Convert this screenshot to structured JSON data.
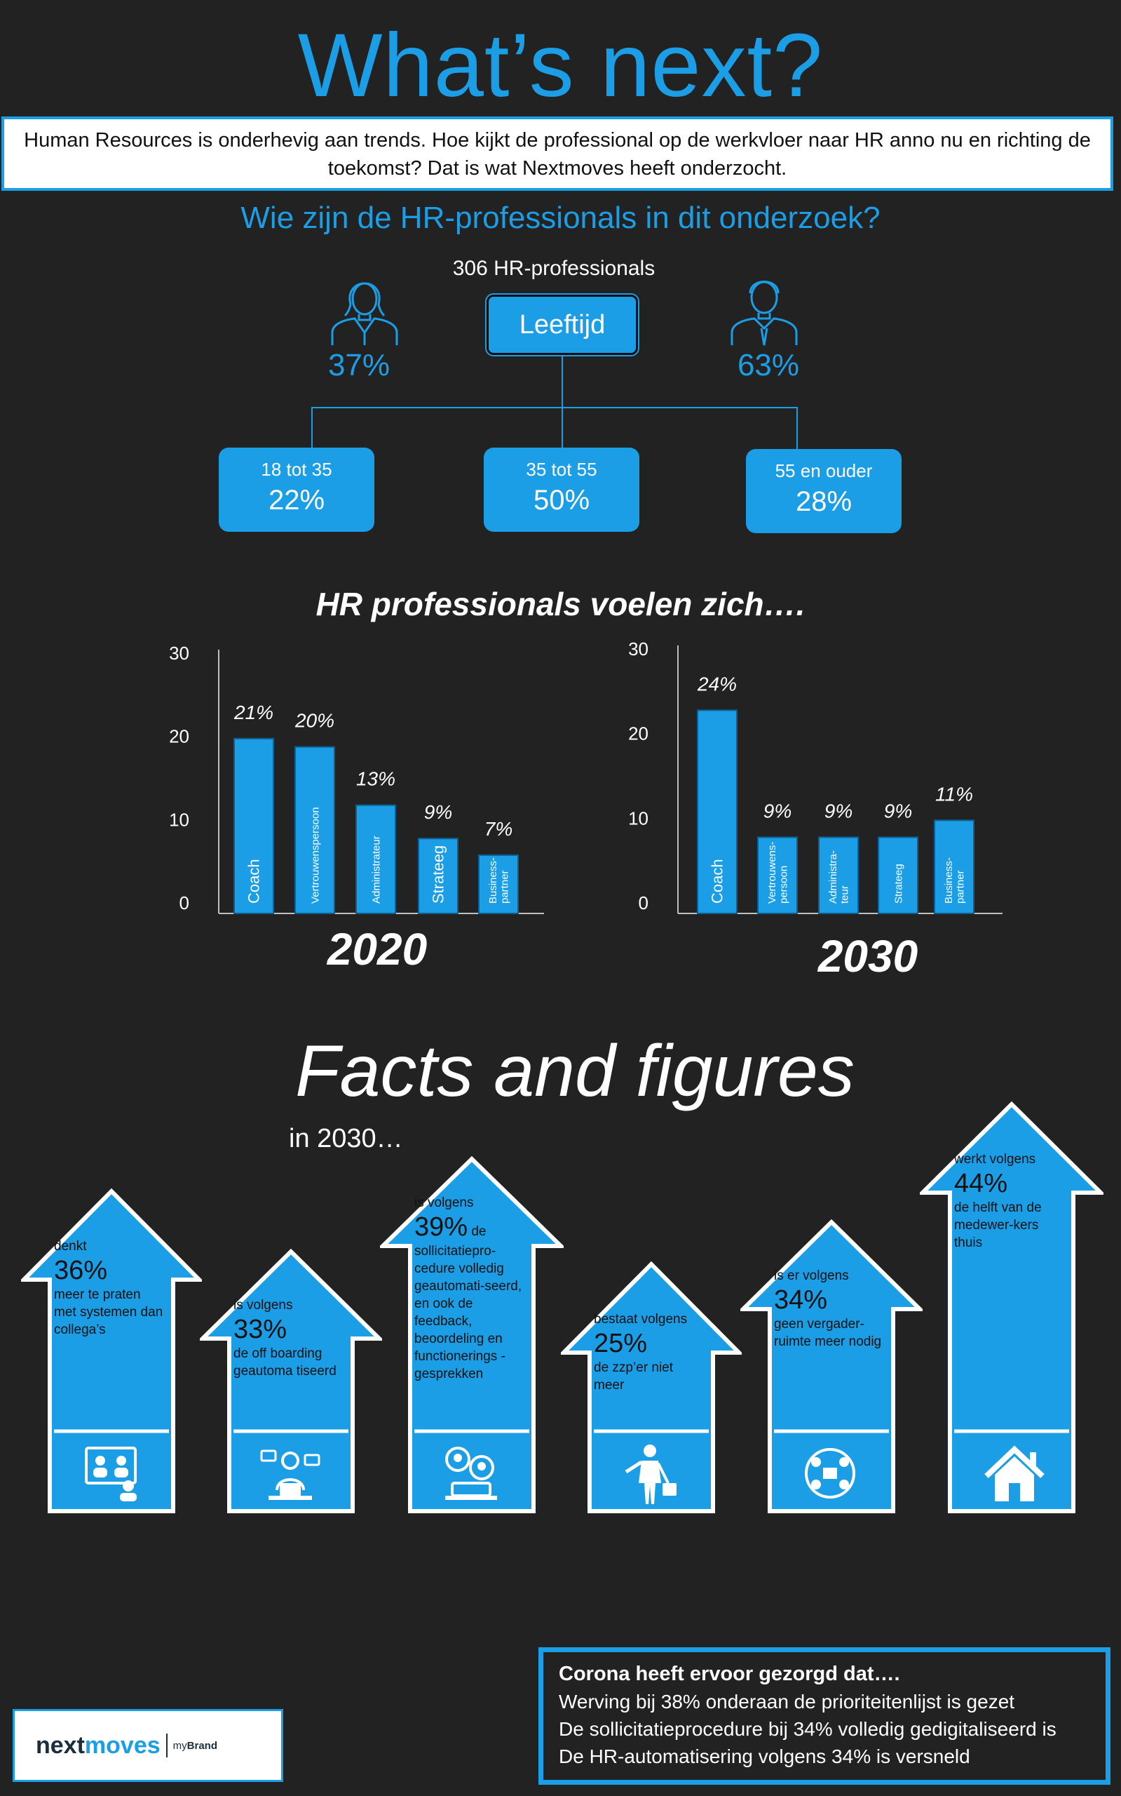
{
  "header": {
    "title": "What’s next?",
    "intro": "Human Resources is onderhevig aan trends. Hoe kijkt de professional op de werkvloer naar HR anno nu en richting de toekomst? Dat is wat Nextmoves heeft onderzocht.",
    "subtitle": "Wie zijn de HR-professionals in dit onderzoek?"
  },
  "demographics": {
    "count": "306 HR-professionals",
    "center_label": "Leeftijd",
    "female_pct": "37%",
    "male_pct": "63%",
    "age_groups": [
      {
        "label": "18 tot 35",
        "value": "22%"
      },
      {
        "label": "35 tot 55",
        "value": "50%"
      },
      {
        "label": "55 en ouder",
        "value": "28%"
      }
    ]
  },
  "charts_heading": "HR professionals voelen zich….",
  "chart_data": [
    {
      "type": "bar",
      "title": "2020",
      "categories": [
        "Coach",
        "Vertrouwenspersoon",
        "Administrateur",
        "Strateeg",
        "Business-partner"
      ],
      "values": [
        21,
        20,
        13,
        9,
        7
      ],
      "data_labels": [
        "21%",
        "20%",
        "13%",
        "9%",
        "7%"
      ],
      "ylim": [
        0,
        30
      ],
      "yticks": [
        "0",
        "10",
        "20",
        "30"
      ]
    },
    {
      "type": "bar",
      "title": "2030",
      "categories": [
        "Coach",
        "Vertrouwens-persoon",
        "Administra-teur",
        "Strateeg",
        "Business-partner"
      ],
      "values": [
        24,
        9,
        9,
        9,
        11
      ],
      "data_labels": [
        "24%",
        "9%",
        "9%",
        "9%",
        "11%"
      ],
      "ylim": [
        0,
        30
      ],
      "yticks": [
        "0",
        "10",
        "20",
        "30"
      ]
    }
  ],
  "facts": {
    "title": "Facts and figures",
    "subtitle": "in 2030…",
    "arrows": [
      {
        "pre": "denkt",
        "pct": "36%",
        "post": "meer te praten met systemen dan collega’s",
        "icon": "video-call-icon"
      },
      {
        "pre": "is volgens",
        "pct": "33%",
        "post": "de off boarding geautoma tiseerd",
        "icon": "laptop-worker-icon"
      },
      {
        "pre": "is volgens",
        "pct": "39%",
        "pct_suffix": "de",
        "post": "sollicitatiepro-cedure volledig geautomati-seerd, en ook de feedback, beoordeling en functionerings - gesprekken",
        "icon": "interview-icon"
      },
      {
        "pre": "bestaat volgens",
        "pct": "25%",
        "post": "de zzp’er niet meer",
        "icon": "businessman-icon"
      },
      {
        "pre": "is er volgens",
        "pct": "34%",
        "post": "geen vergader-ruimte meer nodig",
        "icon": "meeting-icon"
      },
      {
        "pre": "werkt volgens",
        "pct": "44%",
        "post": "de helft van de medewer-kers thuis",
        "icon": "home-icon"
      }
    ]
  },
  "corona": {
    "heading": "Corona heeft ervoor gezorgd dat….",
    "lines": [
      "Werving bij 38% onderaan de prioriteitenlijst is gezet",
      "De sollicitatieprocedure bij 34% volledig gedigitaliseerd is",
      "De HR-automatisering  volgens 34% is versneld"
    ]
  },
  "logo": {
    "next": "next",
    "moves": "moves",
    "my": "my",
    "brand": "Brand"
  }
}
